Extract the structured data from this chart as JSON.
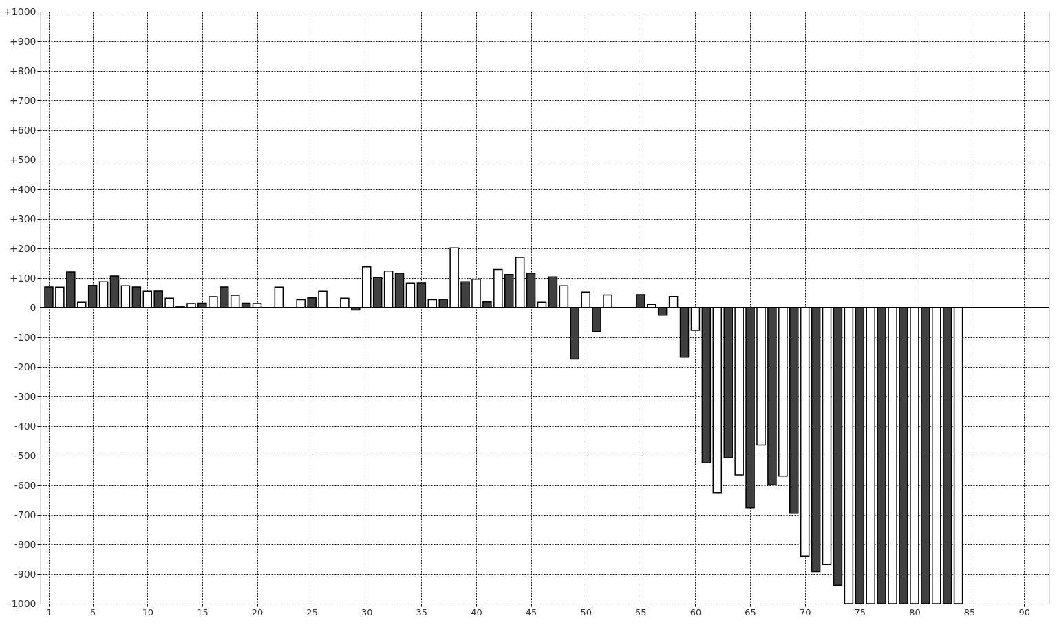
{
  "chart_data": {
    "type": "bar",
    "x": [
      1,
      2,
      3,
      4,
      5,
      6,
      7,
      8,
      9,
      10,
      11,
      12,
      13,
      14,
      15,
      16,
      17,
      18,
      19,
      20,
      21,
      22,
      23,
      24,
      25,
      26,
      27,
      28,
      29,
      30,
      31,
      32,
      33,
      34,
      35,
      36,
      37,
      38,
      39,
      40,
      41,
      42,
      43,
      44,
      45,
      46,
      47,
      48,
      49,
      50,
      51,
      52,
      53,
      54,
      55,
      56,
      57,
      58,
      59,
      60,
      61,
      62,
      63,
      64,
      65,
      66,
      67,
      68,
      69,
      70,
      71,
      72,
      73,
      74,
      75,
      76,
      77,
      78,
      79,
      80,
      81,
      82,
      83,
      84
    ],
    "values": [
      70,
      69,
      121,
      18,
      75,
      88,
      107,
      74,
      70,
      55,
      56,
      32,
      5,
      14,
      15,
      37,
      70,
      42,
      15,
      14,
      null,
      69,
      null,
      27,
      33,
      55,
      null,
      32,
      -8,
      138,
      102,
      124,
      116,
      83,
      84,
      27,
      28,
      202,
      88,
      96,
      19,
      129,
      112,
      170,
      116,
      18,
      104,
      74,
      -173,
      53,
      -81,
      43,
      null,
      null,
      44,
      11,
      -25,
      38,
      -167,
      -77,
      -524,
      -625,
      -507,
      -565,
      -676,
      -464,
      -598,
      -569,
      -695,
      -840,
      -892,
      -868,
      -938,
      -1000,
      -1000,
      -1000,
      -1000,
      -1000,
      -1000,
      -1000,
      -1000,
      -1000,
      -1000,
      -1000
    ],
    "colors": [
      "#404040",
      "#ffffff",
      "#404040",
      "#ffffff",
      "#404040",
      "#ffffff",
      "#404040",
      "#ffffff",
      "#404040",
      "#ffffff",
      "#404040",
      "#ffffff",
      "#404040",
      "#ffffff",
      "#404040",
      "#ffffff",
      "#404040",
      "#ffffff",
      "#404040",
      "#ffffff",
      "#404040",
      "#ffffff",
      "#404040",
      "#ffffff",
      "#404040",
      "#ffffff",
      "#404040",
      "#ffffff",
      "#404040",
      "#ffffff",
      "#404040",
      "#ffffff",
      "#404040",
      "#ffffff",
      "#404040",
      "#ffffff",
      "#404040",
      "#ffffff",
      "#404040",
      "#ffffff",
      "#404040",
      "#ffffff",
      "#404040",
      "#ffffff",
      "#404040",
      "#ffffff",
      "#404040",
      "#ffffff",
      "#404040",
      "#ffffff",
      "#404040",
      "#ffffff",
      "#404040",
      "#ffffff",
      "#404040",
      "#ffffff",
      "#404040",
      "#ffffff",
      "#404040",
      "#ffffff",
      "#404040",
      "#ffffff",
      "#404040",
      "#ffffff",
      "#404040",
      "#ffffff",
      "#404040",
      "#ffffff",
      "#404040",
      "#ffffff",
      "#404040",
      "#ffffff",
      "#404040",
      "#ffffff",
      "#404040",
      "#ffffff",
      "#404040",
      "#ffffff",
      "#404040",
      "#ffffff",
      "#404040",
      "#ffffff",
      "#404040",
      "#ffffff"
    ],
    "xlim": [
      0.5,
      92
    ],
    "xticks": [
      1,
      5,
      10,
      15,
      20,
      25,
      30,
      35,
      40,
      45,
      50,
      55,
      60,
      65,
      70,
      75,
      80,
      85,
      90
    ],
    "ylim": [
      -1000,
      1000
    ],
    "yticks": [
      -1000,
      -900,
      -800,
      -700,
      -600,
      -500,
      -400,
      -300,
      -200,
      -100,
      0,
      {
        "value": 100,
        "label": "+100"
      },
      {
        "value": 200,
        "label": "+200"
      },
      {
        "value": 300,
        "label": "+300"
      },
      {
        "value": 400,
        "label": "+400"
      },
      {
        "value": 500,
        "label": "+500"
      },
      {
        "value": 600,
        "label": "+600"
      },
      {
        "value": 700,
        "label": "+700"
      },
      {
        "value": 800,
        "label": "+800"
      },
      {
        "value": 900,
        "label": "+900"
      },
      {
        "value": 1000,
        "label": "+1000"
      }
    ],
    "ref_lines": [
      {
        "axis": "y",
        "value": 0,
        "color": "#000000"
      }
    ],
    "grid": true
  }
}
